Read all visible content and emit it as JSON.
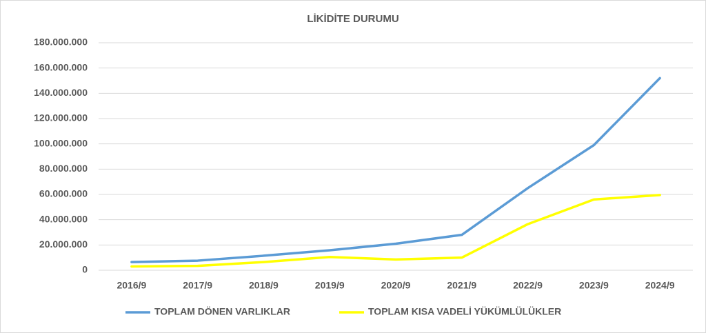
{
  "chart_data": {
    "type": "line",
    "title": "LİKİDİTE DURUMU",
    "categories": [
      "2016/9",
      "2017/9",
      "2018/9",
      "2019/9",
      "2020/9",
      "2021/9",
      "2022/9",
      "2023/9",
      "2024/9"
    ],
    "series": [
      {
        "name": "TOPLAM DÖNEN VARLIKLAR",
        "color": "#5b9bd5",
        "values": [
          6500000,
          7600000,
          11500000,
          15800000,
          21000000,
          28000000,
          65000000,
          99000000,
          152000000
        ]
      },
      {
        "name": "TOPLAM KISA VADELİ YÜKÜMLÜLÜKLER",
        "color": "#ffff00",
        "values": [
          3000000,
          3500000,
          6500000,
          10500000,
          8500000,
          10000000,
          36500000,
          56000000,
          59500000
        ]
      }
    ],
    "ylim": [
      0,
      180000000
    ],
    "yticks": [
      0,
      {
        "value": 20000000,
        "label": "20.000.000"
      },
      {
        "value": 40000000,
        "label": "40.000.000"
      },
      {
        "value": 60000000,
        "label": "60.000.000"
      },
      {
        "value": 80000000,
        "label": "80.000.000"
      },
      {
        "value": 100000000,
        "label": "100.000.000"
      },
      {
        "value": 120000000,
        "label": "120.000.000"
      },
      {
        "value": 140000000,
        "label": "140.000.000"
      },
      {
        "value": 160000000,
        "label": "160.000.000"
      },
      {
        "value": 180000000,
        "label": "180.000.000"
      }
    ],
    "grid": true,
    "legend": "bottom"
  }
}
